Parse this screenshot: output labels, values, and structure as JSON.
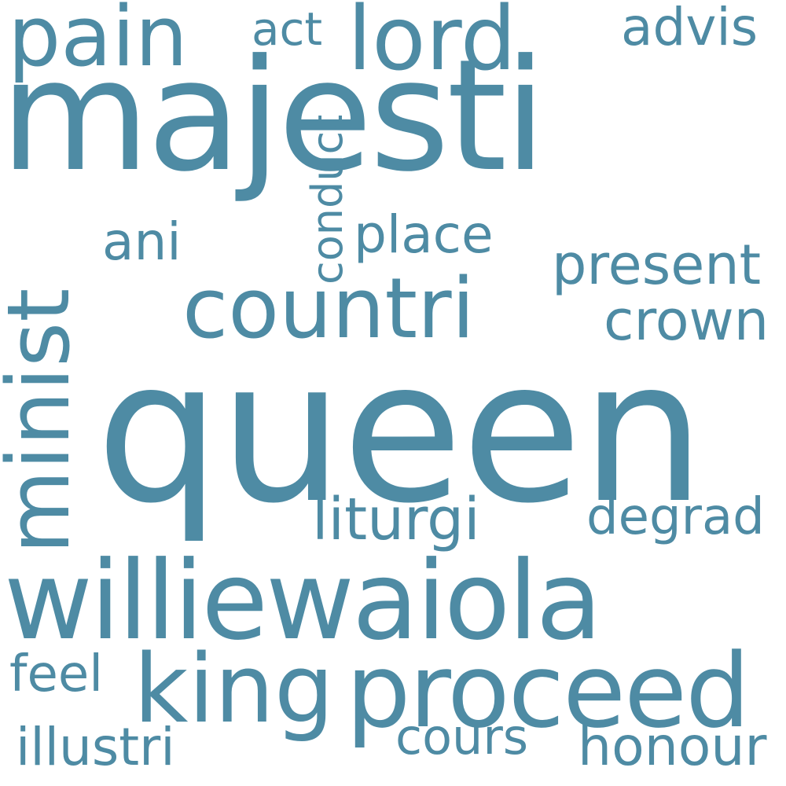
{
  "colors": {
    "background": "#ffffff",
    "word": "#4e8ba4"
  },
  "words": [
    {
      "text": "majesti"
    },
    {
      "text": "queen"
    },
    {
      "text": "williewaiola"
    },
    {
      "text": "proceed"
    },
    {
      "text": "countri"
    },
    {
      "text": "lord"
    },
    {
      "text": "minist"
    },
    {
      "text": "pain"
    },
    {
      "text": "king"
    },
    {
      "text": "liturgi"
    },
    {
      "text": "present"
    },
    {
      "text": "crown"
    },
    {
      "text": "place"
    },
    {
      "text": "conduct"
    },
    {
      "text": "degrad"
    },
    {
      "text": "honour"
    },
    {
      "text": "illustri"
    },
    {
      "text": "cours"
    },
    {
      "text": "advis"
    },
    {
      "text": "act"
    },
    {
      "text": "ani"
    },
    {
      "text": "feel"
    }
  ]
}
